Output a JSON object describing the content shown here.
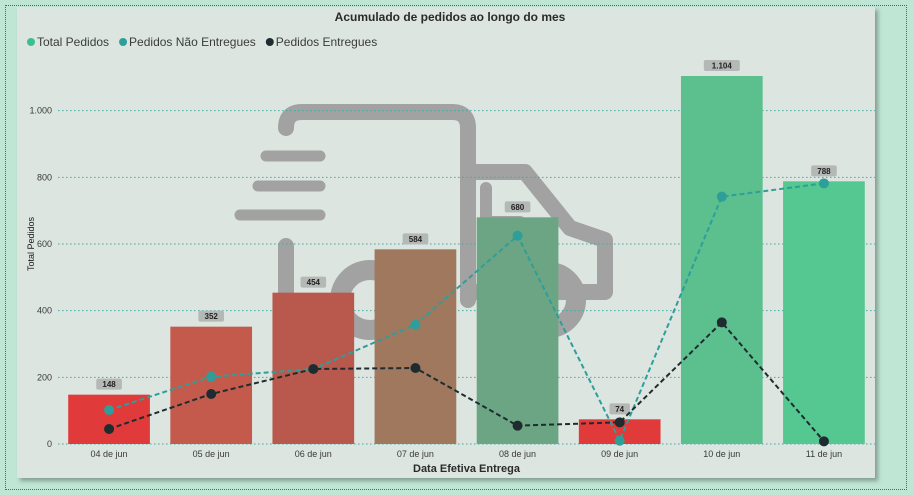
{
  "chart_data": {
    "type": "bar",
    "title": "Acumulado de pedidos ao longo do mes",
    "xlabel": "Data Efetiva Entrega",
    "ylabel": "Total Pedidos",
    "ylim": [
      0,
      1200
    ],
    "yticks": [
      0,
      200,
      400,
      600,
      800,
      1000
    ],
    "ytick_labels": [
      "0",
      "200",
      "400",
      "600",
      "800",
      "1.000"
    ],
    "grid": true,
    "legend_position": "top-left",
    "categories": [
      "04 de jun",
      "05 de jun",
      "06 de jun",
      "07 de jun",
      "08 de jun",
      "09 de jun",
      "10 de jun",
      "11 de jun"
    ],
    "series": [
      {
        "name": "Total Pedidos",
        "kind": "bar",
        "legend_color": "#3cbf8e",
        "values": [
          148,
          352,
          454,
          584,
          680,
          74,
          1104,
          788
        ],
        "labels": [
          "148",
          "352",
          "454",
          "584",
          "680",
          "74",
          "1.104",
          "788"
        ],
        "bar_colors": [
          "#e03a3a",
          "#c45a4c",
          "#b9584c",
          "#a0785e",
          "#6ca583",
          "#e03a3a",
          "#5cbf8e",
          "#55c790"
        ]
      },
      {
        "name": "Pedidos Não Entregues",
        "kind": "line",
        "color": "#2e9e9a",
        "values": [
          102,
          202,
          225,
          358,
          625,
          10,
          742,
          782
        ]
      },
      {
        "name": "Pedidos Entregues",
        "kind": "line",
        "color": "#1e2c30",
        "values": [
          45,
          150,
          225,
          228,
          55,
          65,
          365,
          8
        ]
      }
    ]
  }
}
